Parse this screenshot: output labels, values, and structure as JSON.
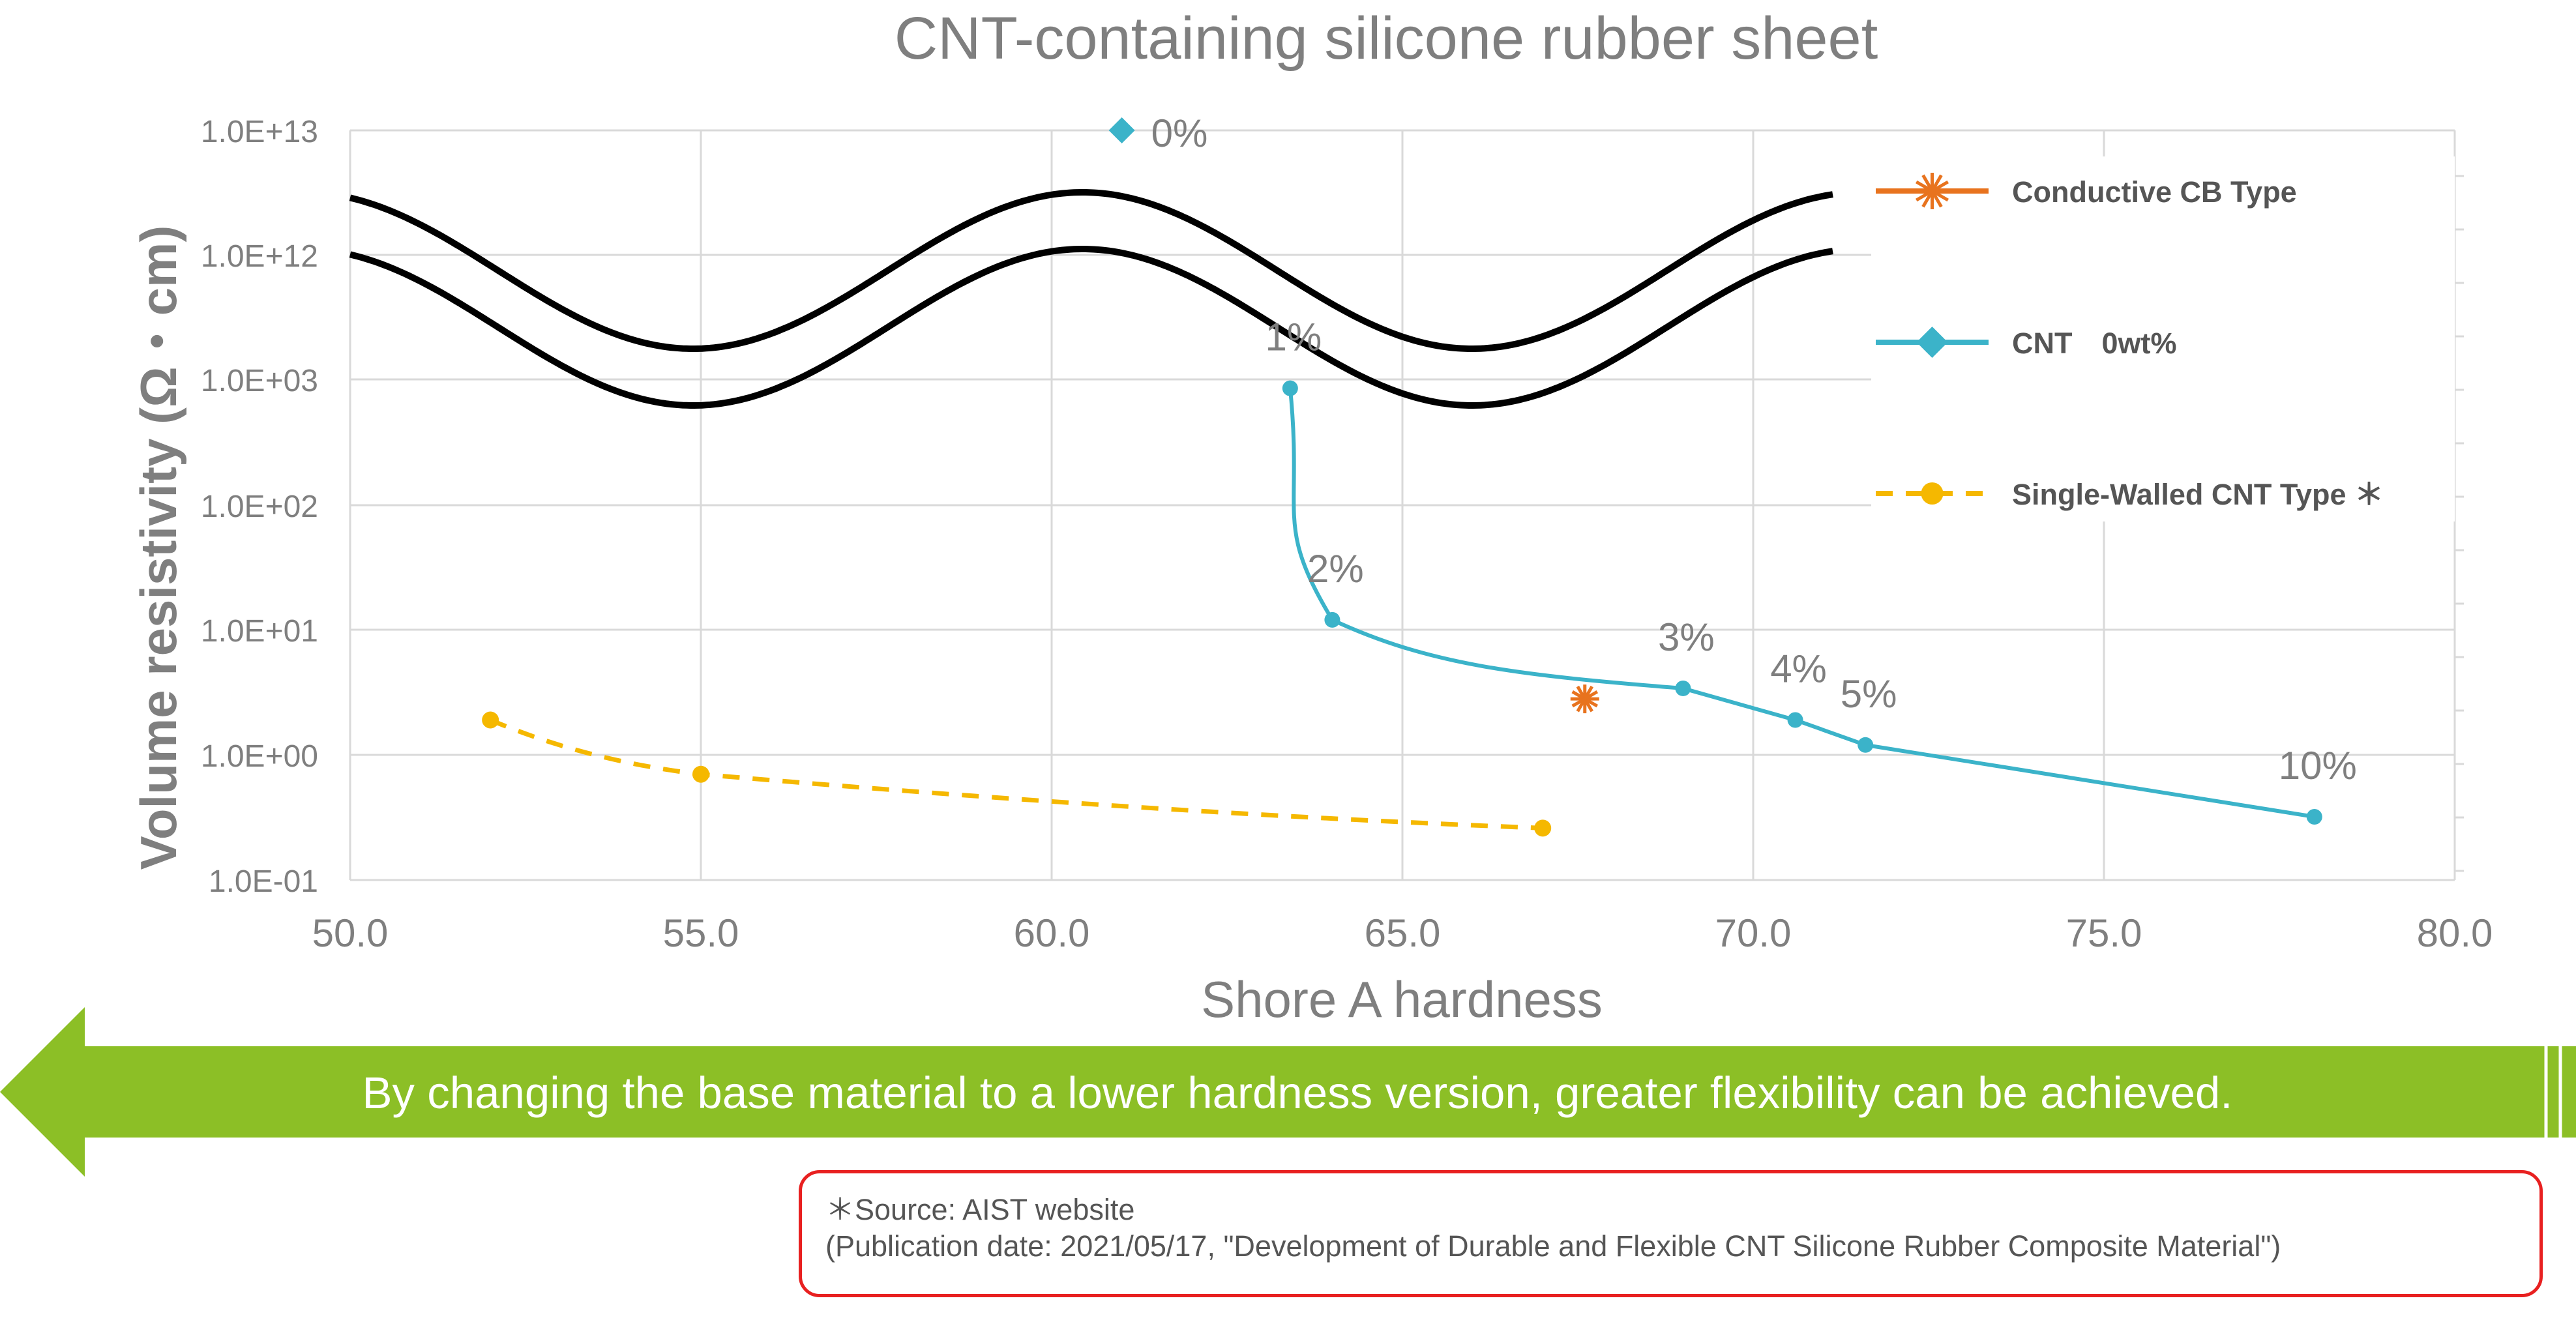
{
  "title": "CNT-containing silicone rubber sheet",
  "banner_text": "By changing the base material to a lower hardness version, greater flexibility can be achieved.",
  "source": {
    "line1": "＊Source: AIST website",
    "line2": "(Publication date: 2021/05/17, \"Development of Durable and Flexible CNT Silicone Rubber Composite Material\")"
  },
  "colors": {
    "cnt": "#3bb3c9",
    "swcnt": "#f5b800",
    "cb": "#e8731e",
    "banner": "#8cbf26",
    "axis_text": "#7f7f7f",
    "grid": "#d9d9d9",
    "break_line": "#000000",
    "box_border": "#e82020"
  },
  "chart_data": {
    "type": "scatter",
    "title": "CNT-containing silicone rubber sheet",
    "xlabel": "Shore A hardness",
    "ylabel": "Volume resistivity (Ω・cm)",
    "xlim": [
      50,
      80
    ],
    "x_ticks": [
      "50.0",
      "55.0",
      "60.0",
      "65.0",
      "70.0",
      "75.0",
      "80.0"
    ],
    "y_ticks": [
      "1.0E-01",
      "1.0E+00",
      "1.0E+01",
      "1.0E+02",
      "1.0E+03",
      "1.0E+12",
      "1.0E+13"
    ],
    "y_scale": "log with axis break between 1.0E+03 and 1.0E+12",
    "grid": true,
    "legend_position": "right",
    "series": [
      {
        "name": "Conductive CB Type",
        "marker": "asterisk",
        "line": "none",
        "points": [
          {
            "x": 67.6,
            "y": 2.8
          }
        ]
      },
      {
        "name": "CNT　0wt%",
        "marker": "circle",
        "line": "solid smooth",
        "points": [
          {
            "x": 61.0,
            "y": 10000000000000.0,
            "label": "0%",
            "marker": "diamond",
            "connected": false
          },
          {
            "x": 63.4,
            "y": 850,
            "label": "1%"
          },
          {
            "x": 64.0,
            "y": 12,
            "label": "2%"
          },
          {
            "x": 69.0,
            "y": 3.4,
            "label": "3%"
          },
          {
            "x": 70.6,
            "y": 1.9,
            "label": "4%"
          },
          {
            "x": 71.6,
            "y": 1.2,
            "label": "5%"
          },
          {
            "x": 78.0,
            "y": 0.32,
            "label": "10%"
          }
        ]
      },
      {
        "name": "Single-Walled CNT Type ＊",
        "marker": "circle",
        "line": "dashed",
        "points": [
          {
            "x": 52.0,
            "y": 1.9
          },
          {
            "x": 55.0,
            "y": 0.7
          },
          {
            "x": 67.0,
            "y": 0.26
          }
        ]
      }
    ]
  }
}
